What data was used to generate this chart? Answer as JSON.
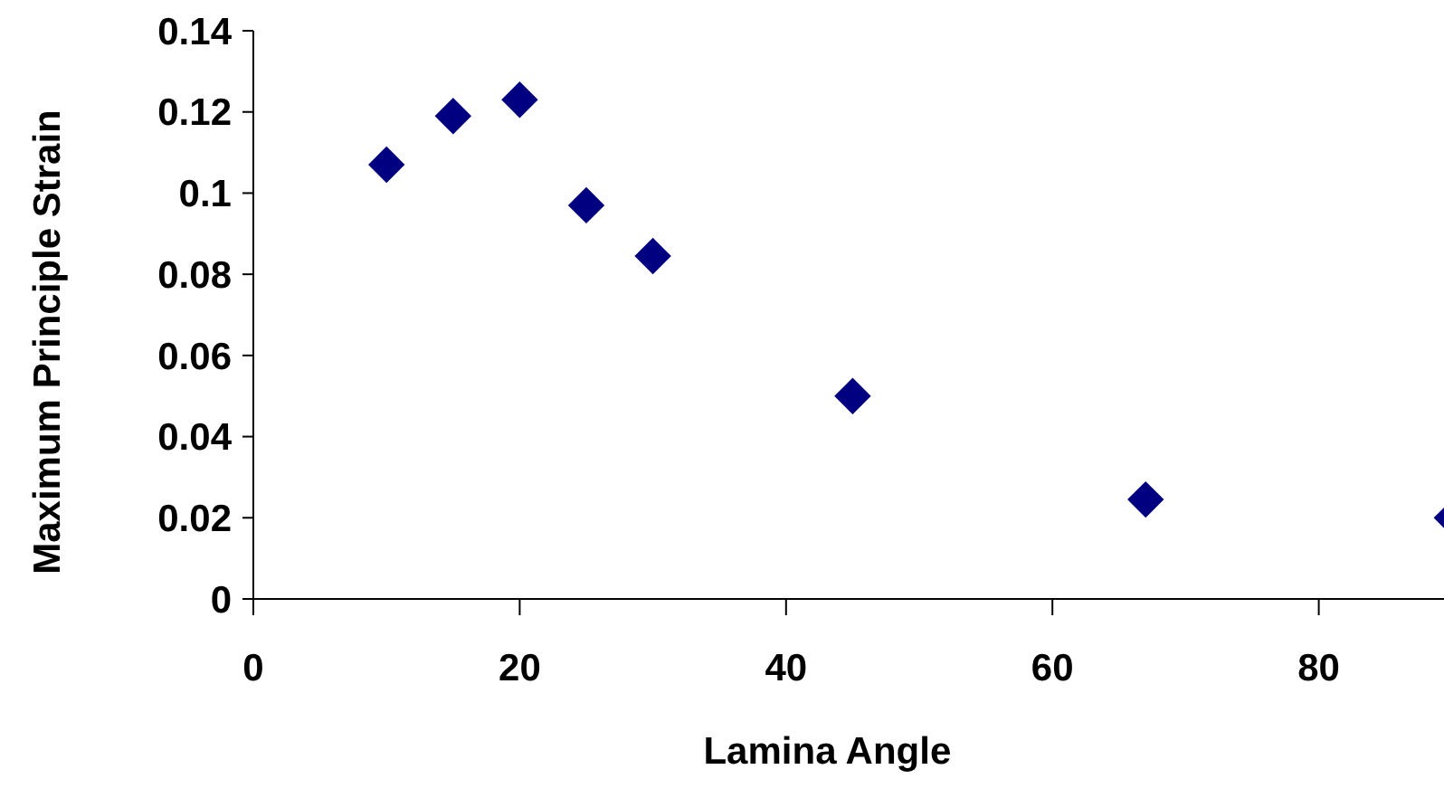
{
  "chart_data": {
    "type": "scatter",
    "xlabel": "Lamina Angle",
    "ylabel": "Maximum Principle Strain",
    "x": [
      10,
      15,
      20,
      25,
      30,
      45,
      67,
      90
    ],
    "series": [
      {
        "color": "#000080",
        "values": [
          0.107,
          0.119,
          0.123,
          0.097,
          0.0845,
          0.05,
          0.0245,
          0.02
        ]
      }
    ],
    "xlim": [
      0,
      90
    ],
    "xticks": [
      0,
      20,
      40,
      60,
      80
    ],
    "ylim": [
      0,
      0.14
    ],
    "yticks": [
      {
        "value": 0,
        "label": "0"
      },
      {
        "value": 0.02,
        "label": "0.02"
      },
      {
        "value": 0.04,
        "label": "0.04"
      },
      {
        "value": 0.06,
        "label": "0.06"
      },
      {
        "value": 0.08,
        "label": "0.08"
      },
      {
        "value": 0.1,
        "label": "0.1"
      },
      {
        "value": 0.12,
        "label": "0.12"
      },
      {
        "value": 0.14,
        "label": "0.14"
      }
    ],
    "grid": false,
    "marker": "diamond"
  }
}
